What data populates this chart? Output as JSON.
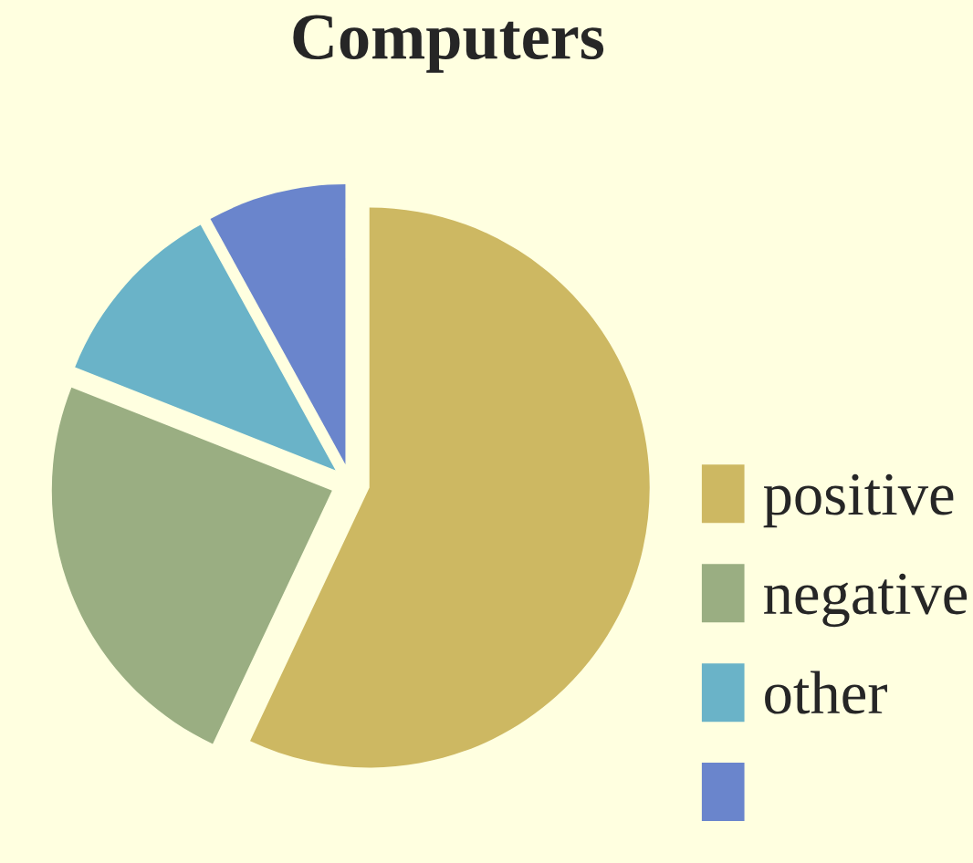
{
  "chart_data": {
    "type": "pie",
    "title": "Computers",
    "categories": [
      "positive",
      "negative",
      "other",
      null
    ],
    "values": [
      57,
      24,
      11,
      8
    ],
    "colors": [
      "#cdb862",
      "#9aae82",
      "#6ab3c8",
      "#6a85cc"
    ],
    "legend": "right"
  }
}
